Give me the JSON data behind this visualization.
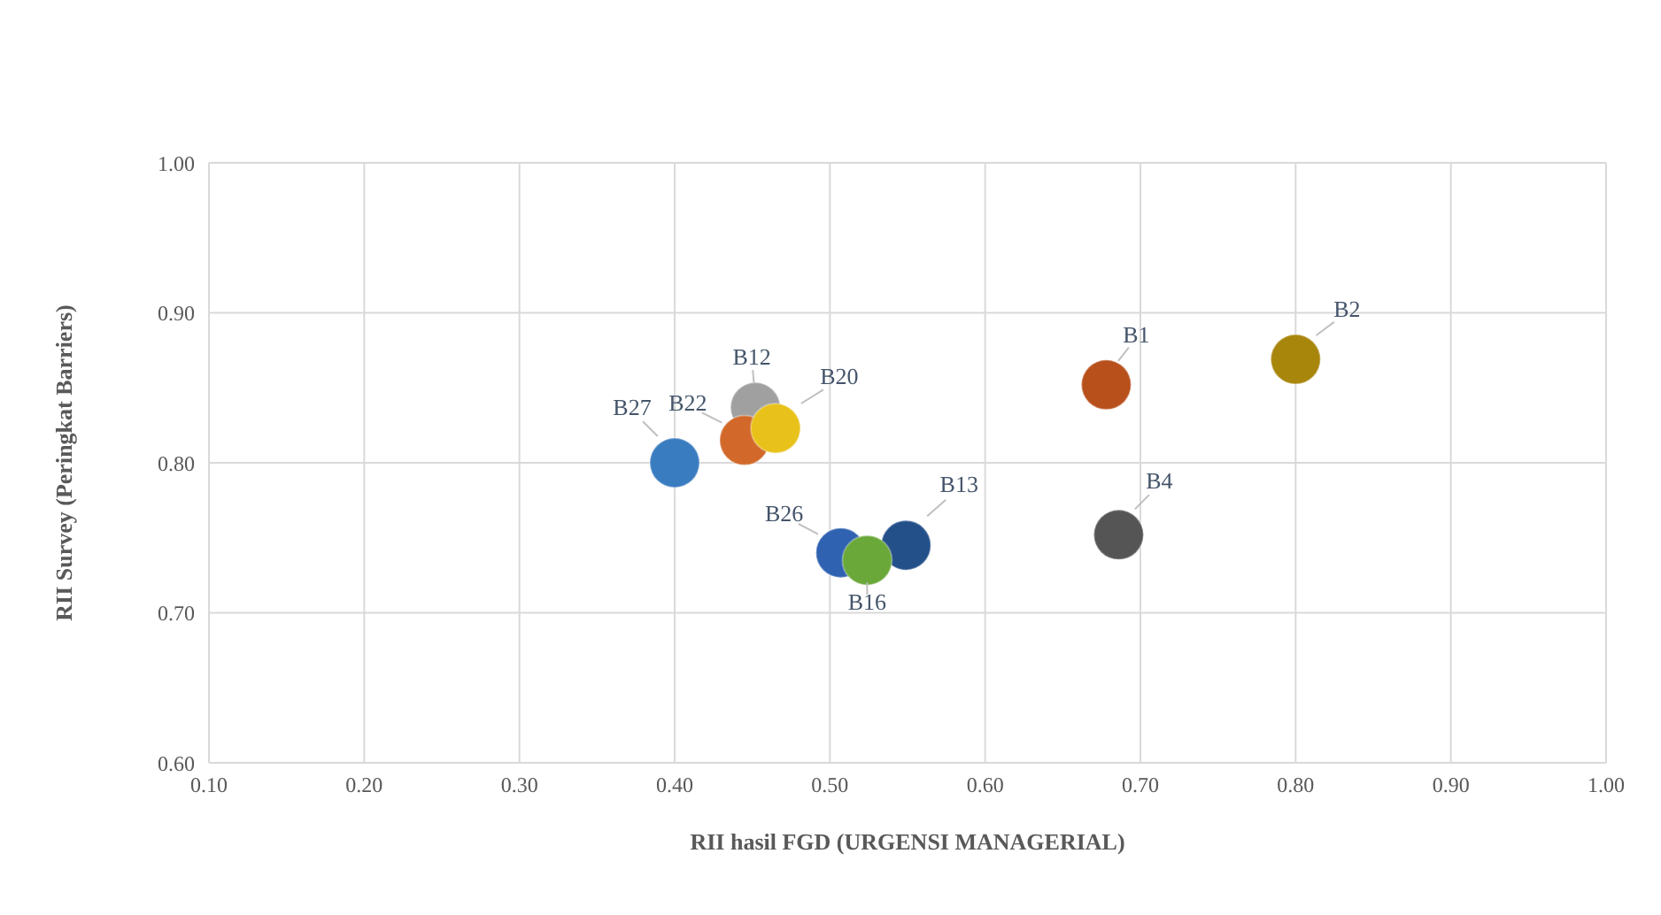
{
  "chart_data": {
    "type": "scatter",
    "xlabel": "RII hasil FGD (URGENSI MANAGERIAL)",
    "ylabel": "RII Survey (Peringkat Barriers)",
    "xlim": [
      0.1,
      1.0
    ],
    "xticks": [
      {
        "value": 0.1,
        "label": "0.10"
      },
      {
        "value": 0.2,
        "label": "0.20"
      },
      {
        "value": 0.3,
        "label": "0.30"
      },
      {
        "value": 0.4,
        "label": "0.40"
      },
      {
        "value": 0.5,
        "label": "0.50"
      },
      {
        "value": 0.6,
        "label": "0.60"
      },
      {
        "value": 0.7,
        "label": "0.70"
      },
      {
        "value": 0.8,
        "label": "0.80"
      },
      {
        "value": 0.9,
        "label": "0.90"
      },
      {
        "value": 1.0,
        "label": "1.00"
      }
    ],
    "ylim": [
      0.6,
      1.0
    ],
    "yticks": [
      {
        "value": 0.6,
        "label": "0.60"
      },
      {
        "value": 0.7,
        "label": "0.70"
      },
      {
        "value": 0.8,
        "label": "0.80"
      },
      {
        "value": 0.9,
        "label": "0.90"
      },
      {
        "value": 1.0,
        "label": "1.00"
      }
    ],
    "grid": true,
    "legend": false,
    "marker": "circle",
    "series": [
      {
        "name": "B27",
        "color": "#3a7cc0",
        "x": [
          0.4
        ],
        "values": [
          0.8
        ]
      },
      {
        "name": "B12",
        "color": "#a0a0a0",
        "x": [
          0.452
        ],
        "values": [
          0.837
        ]
      },
      {
        "name": "B22",
        "color": "#d2692a",
        "x": [
          0.445
        ],
        "values": [
          0.815
        ]
      },
      {
        "name": "B20",
        "color": "#e8c21a",
        "x": [
          0.465
        ],
        "values": [
          0.823
        ]
      },
      {
        "name": "B26",
        "color": "#2f62b0",
        "x": [
          0.507
        ],
        "values": [
          0.74
        ]
      },
      {
        "name": "B13",
        "color": "#24508a",
        "x": [
          0.549
        ],
        "values": [
          0.745
        ]
      },
      {
        "name": "B16",
        "color": "#6aa83a",
        "x": [
          0.524
        ],
        "values": [
          0.735
        ]
      },
      {
        "name": "B1",
        "color": "#b8501c",
        "x": [
          0.678
        ],
        "values": [
          0.852
        ]
      },
      {
        "name": "B2",
        "color": "#a8860c",
        "x": [
          0.8
        ],
        "values": [
          0.869
        ]
      },
      {
        "name": "B4",
        "color": "#555555",
        "x": [
          0.686
        ],
        "values": [
          0.752
        ]
      }
    ]
  }
}
